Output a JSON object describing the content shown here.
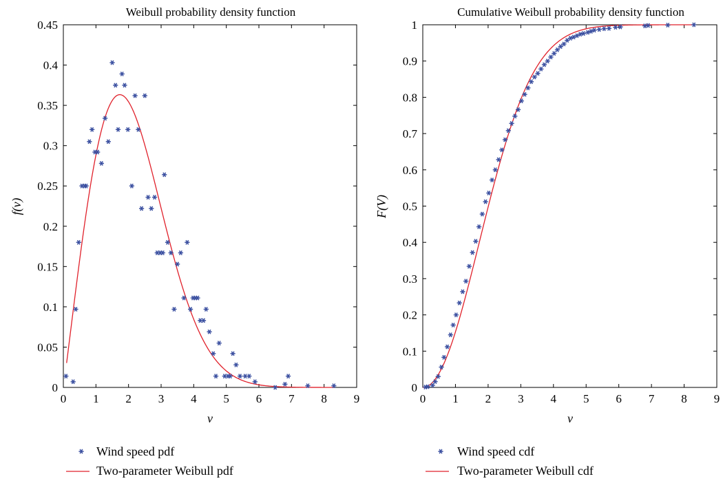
{
  "chart_data": [
    {
      "type": "scatter",
      "title": "Weibull probability density function",
      "xlabel": "v",
      "ylabel": "f(v)",
      "xlim": [
        0,
        9
      ],
      "ylim": [
        0,
        0.45
      ],
      "xticks": [
        "0",
        "1",
        "2",
        "3",
        "4",
        "5",
        "6",
        "7",
        "8",
        "9"
      ],
      "yticks": [
        "0",
        "0.05",
        "0.1",
        "0.15",
        "0.2",
        "0.25",
        "0.3",
        "0.35",
        "0.4",
        "0.45"
      ],
      "grid": false,
      "legend_position": "below",
      "series": [
        {
          "name": "Wind speed pdf",
          "kind": "markers",
          "marker": "asterisk",
          "color": "#3a4fa0",
          "points": [
            [
              0.08,
              0.014
            ],
            [
              0.3,
              0.007
            ],
            [
              0.38,
              0.097
            ],
            [
              0.47,
              0.18
            ],
            [
              0.57,
              0.25
            ],
            [
              0.65,
              0.25
            ],
            [
              0.7,
              0.25
            ],
            [
              0.8,
              0.305
            ],
            [
              0.88,
              0.32
            ],
            [
              0.97,
              0.292
            ],
            [
              1.05,
              0.292
            ],
            [
              1.17,
              0.278
            ],
            [
              1.28,
              0.334
            ],
            [
              1.38,
              0.305
            ],
            [
              1.5,
              0.403
            ],
            [
              1.6,
              0.375
            ],
            [
              1.68,
              0.32
            ],
            [
              1.8,
              0.389
            ],
            [
              1.88,
              0.375
            ],
            [
              1.98,
              0.32
            ],
            [
              2.1,
              0.25
            ],
            [
              2.2,
              0.362
            ],
            [
              2.3,
              0.32
            ],
            [
              2.4,
              0.222
            ],
            [
              2.5,
              0.362
            ],
            [
              2.6,
              0.236
            ],
            [
              2.7,
              0.222
            ],
            [
              2.8,
              0.236
            ],
            [
              2.88,
              0.167
            ],
            [
              2.97,
              0.167
            ],
            [
              3.05,
              0.167
            ],
            [
              3.1,
              0.264
            ],
            [
              3.2,
              0.18
            ],
            [
              3.3,
              0.167
            ],
            [
              3.4,
              0.097
            ],
            [
              3.5,
              0.153
            ],
            [
              3.6,
              0.167
            ],
            [
              3.7,
              0.111
            ],
            [
              3.8,
              0.18
            ],
            [
              3.9,
              0.097
            ],
            [
              3.98,
              0.111
            ],
            [
              4.05,
              0.111
            ],
            [
              4.12,
              0.111
            ],
            [
              4.2,
              0.083
            ],
            [
              4.3,
              0.083
            ],
            [
              4.38,
              0.097
            ],
            [
              4.48,
              0.069
            ],
            [
              4.6,
              0.042
            ],
            [
              4.68,
              0.014
            ],
            [
              4.78,
              0.055
            ],
            [
              4.95,
              0.014
            ],
            [
              5.05,
              0.014
            ],
            [
              5.12,
              0.014
            ],
            [
              5.2,
              0.042
            ],
            [
              5.3,
              0.028
            ],
            [
              5.42,
              0.014
            ],
            [
              5.58,
              0.014
            ],
            [
              5.7,
              0.014
            ],
            [
              5.88,
              0.007
            ],
            [
              6.5,
              0.0
            ],
            [
              6.8,
              0.004
            ],
            [
              6.9,
              0.014
            ],
            [
              7.5,
              0.002
            ],
            [
              8.3,
              0.002
            ]
          ]
        },
        {
          "name": "Two-parameter Weibull pdf",
          "kind": "line",
          "color": "#e0202a",
          "function": "weibull_pdf",
          "shape_k": 2.05,
          "scale_c": 2.4,
          "x_range": [
            0.1,
            8.3
          ]
        }
      ]
    },
    {
      "type": "scatter",
      "title": "Cumulative Weibull probability density function",
      "xlabel": "v",
      "ylabel": "F(V)",
      "xlim": [
        0,
        9
      ],
      "ylim": [
        0,
        1
      ],
      "xticks": [
        "0",
        "1",
        "2",
        "3",
        "4",
        "5",
        "6",
        "7",
        "8",
        "9"
      ],
      "yticks": [
        "0",
        "0.1",
        "0.2",
        "0.3",
        "0.4",
        "0.5",
        "0.6",
        "0.7",
        "0.8",
        "0.9",
        "1"
      ],
      "grid": false,
      "legend_position": "below",
      "series": [
        {
          "name": "Wind speed cdf",
          "kind": "markers",
          "marker": "asterisk",
          "color": "#3a4fa0",
          "points": [
            [
              0.08,
              0.001
            ],
            [
              0.15,
              0.002
            ],
            [
              0.3,
              0.006
            ],
            [
              0.38,
              0.016
            ],
            [
              0.47,
              0.03
            ],
            [
              0.57,
              0.056
            ],
            [
              0.65,
              0.083
            ],
            [
              0.75,
              0.112
            ],
            [
              0.85,
              0.145
            ],
            [
              0.93,
              0.172
            ],
            [
              1.02,
              0.2
            ],
            [
              1.12,
              0.233
            ],
            [
              1.22,
              0.264
            ],
            [
              1.32,
              0.293
            ],
            [
              1.42,
              0.334
            ],
            [
              1.52,
              0.372
            ],
            [
              1.62,
              0.403
            ],
            [
              1.72,
              0.443
            ],
            [
              1.82,
              0.478
            ],
            [
              1.92,
              0.512
            ],
            [
              2.02,
              0.536
            ],
            [
              2.12,
              0.572
            ],
            [
              2.22,
              0.6
            ],
            [
              2.32,
              0.628
            ],
            [
              2.42,
              0.655
            ],
            [
              2.52,
              0.683
            ],
            [
              2.62,
              0.708
            ],
            [
              2.72,
              0.728
            ],
            [
              2.82,
              0.748
            ],
            [
              2.92,
              0.766
            ],
            [
              3.02,
              0.79
            ],
            [
              3.12,
              0.808
            ],
            [
              3.22,
              0.826
            ],
            [
              3.32,
              0.843
            ],
            [
              3.42,
              0.856
            ],
            [
              3.52,
              0.866
            ],
            [
              3.62,
              0.878
            ],
            [
              3.72,
              0.89
            ],
            [
              3.82,
              0.9
            ],
            [
              3.92,
              0.911
            ],
            [
              4.02,
              0.921
            ],
            [
              4.12,
              0.931
            ],
            [
              4.22,
              0.94
            ],
            [
              4.32,
              0.947
            ],
            [
              4.42,
              0.957
            ],
            [
              4.52,
              0.963
            ],
            [
              4.62,
              0.966
            ],
            [
              4.72,
              0.97
            ],
            [
              4.82,
              0.974
            ],
            [
              4.92,
              0.976
            ],
            [
              5.05,
              0.979
            ],
            [
              5.15,
              0.982
            ],
            [
              5.25,
              0.985
            ],
            [
              5.4,
              0.987
            ],
            [
              5.55,
              0.989
            ],
            [
              5.7,
              0.99
            ],
            [
              5.9,
              0.993
            ],
            [
              6.05,
              0.994
            ],
            [
              6.8,
              0.997
            ],
            [
              6.9,
              0.998
            ],
            [
              7.5,
              0.999
            ],
            [
              8.3,
              1.0
            ]
          ]
        },
        {
          "name": "Two-parameter Weibull cdf",
          "kind": "line",
          "color": "#e0202a",
          "function": "weibull_cdf",
          "shape_k": 2.05,
          "scale_c": 2.4,
          "x_range": [
            0,
            8.3
          ]
        }
      ]
    }
  ]
}
